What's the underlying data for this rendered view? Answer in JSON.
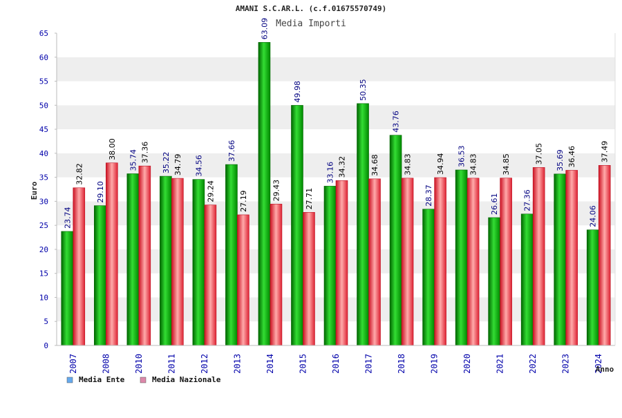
{
  "header": {
    "title": "AMANI S.C.AR.L. (c.f.01675570749)",
    "subtitle": "Media Importi"
  },
  "colors": {
    "ente": "#00bb00",
    "nazionale": "#ee3344",
    "label_ente": "#000080",
    "label_nazionale": "#000000",
    "legend_ente": "#66aaee",
    "legend_nazionale": "#dd88aa",
    "band": "#eeeeee",
    "axis": "#bbbbbb"
  },
  "chart_data": {
    "type": "bar",
    "title": "AMANI S.C.AR.L. (c.f.01675570749)",
    "subtitle": "Media Importi",
    "xlabel": "Anno",
    "ylabel": "Euro",
    "ylim": [
      0,
      65
    ],
    "yticks": [
      "0",
      "5",
      "10",
      "15",
      "20",
      "25",
      "30",
      "35",
      "40",
      "45",
      "50",
      "55",
      "60",
      "65"
    ],
    "grid": "alternating horizontal bands",
    "legend_position": "bottom-left",
    "categories": [
      "2007",
      "2008",
      "2010",
      "2011",
      "2012",
      "2013",
      "2014",
      "2015",
      "2016",
      "2017",
      "2018",
      "2019",
      "2020",
      "2021",
      "2022",
      "2023",
      "2024"
    ],
    "series": [
      {
        "name": "Media Ente",
        "values": [
          23.74,
          29.1,
          35.74,
          35.22,
          34.56,
          37.66,
          63.09,
          49.98,
          33.16,
          50.35,
          43.76,
          28.37,
          36.53,
          26.61,
          27.36,
          35.69,
          24.06
        ],
        "labels": [
          "23.74",
          "29.10",
          "35.74",
          "35.22",
          "34.56",
          "37.66",
          "63.09",
          "49.98",
          "33.16",
          "50.35",
          "43.76",
          "28.37",
          "36.53",
          "26.61",
          "27.36",
          "35.69",
          "24.06"
        ]
      },
      {
        "name": "Media Nazionale",
        "values": [
          32.82,
          38.0,
          37.36,
          34.79,
          29.24,
          27.19,
          29.43,
          27.71,
          34.32,
          34.68,
          34.83,
          34.94,
          34.83,
          34.85,
          37.05,
          36.46,
          37.49
        ],
        "labels": [
          "32.82",
          "38.00",
          "37.36",
          "34.79",
          "29.24",
          "27.19",
          "29.43",
          "27.71",
          "34.32",
          "34.68",
          "34.83",
          "34.94",
          "34.83",
          "34.85",
          "37.05",
          "36.46",
          "37.49"
        ]
      }
    ]
  }
}
